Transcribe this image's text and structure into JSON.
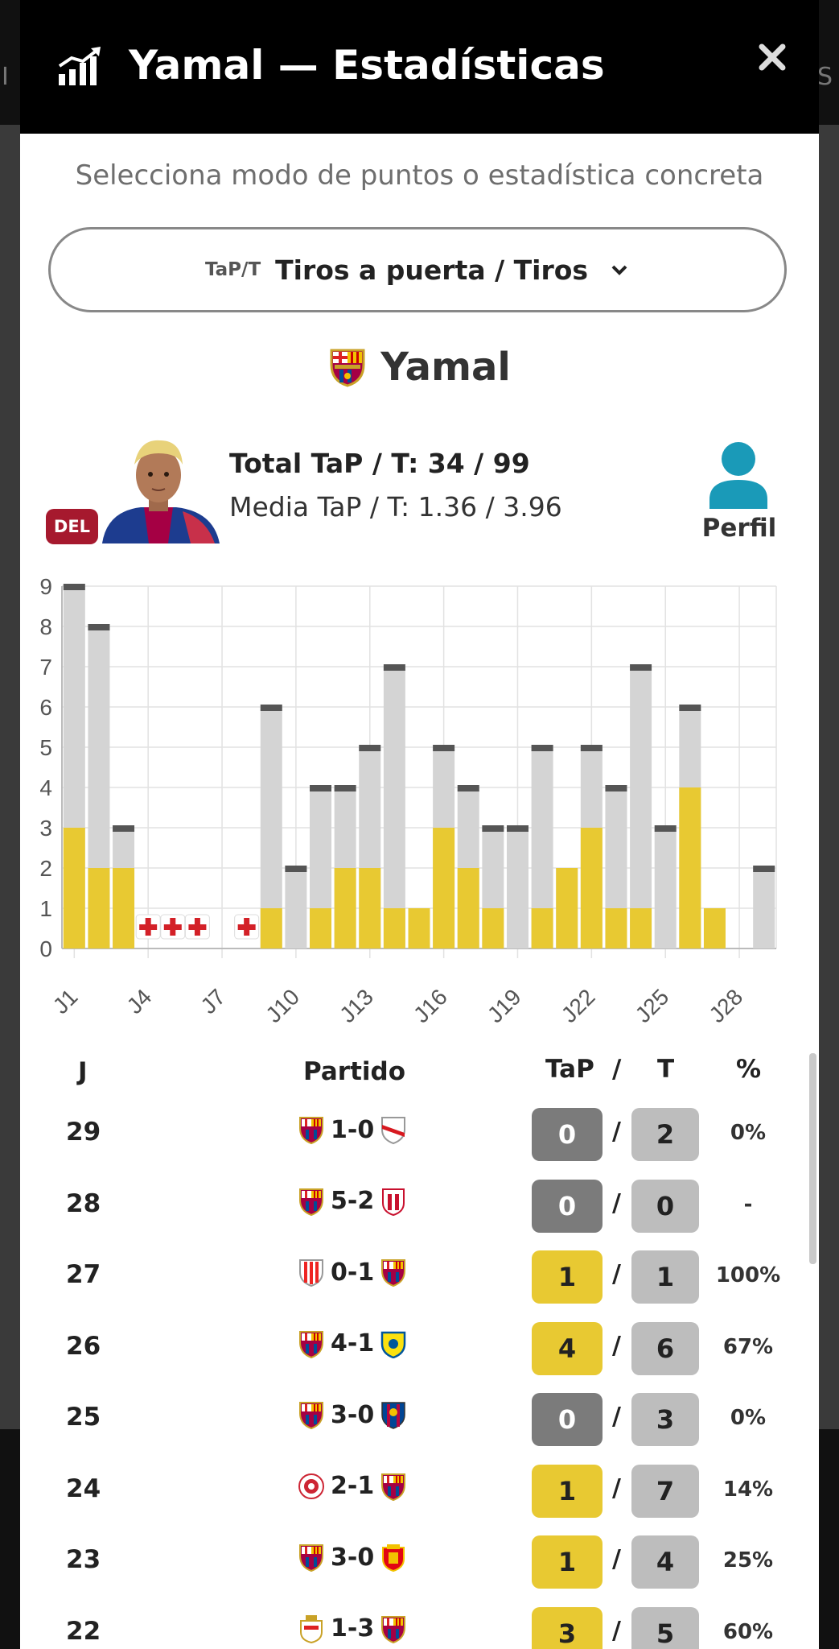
{
  "modal": {
    "title": "Yamal — Estadísticas",
    "subtitle": "Selecciona modo de puntos o estadística concreta",
    "selector": {
      "abbr": "TaP/T",
      "label": "Tiros a puerta / Tiros"
    }
  },
  "background": {
    "left_letter": "I",
    "right_letter": "S"
  },
  "player": {
    "name": "Yamal",
    "position": "DEL",
    "total": "Total TaP / T: 34 / 99",
    "average": "Media TaP / T: 1.36 / 3.96",
    "profile_label": "Perfil"
  },
  "colors": {
    "yellow": "#e8c932",
    "gray_bar": "#d4d4d4",
    "bar_cap": "#555555",
    "dark_pill": "#7b7b7b",
    "light_pill": "#bdbdbd",
    "badge": "#a6192e",
    "profile": "#1a9ab8"
  },
  "chart_data": {
    "type": "bar",
    "stacked": true,
    "categories": [
      "J1",
      "J2",
      "J3",
      "J4",
      "J5",
      "J6",
      "J7",
      "J8",
      "J9",
      "J10",
      "J11",
      "J12",
      "J13",
      "J14",
      "J15",
      "J16",
      "J17",
      "J18",
      "J19",
      "J20",
      "J21",
      "J22",
      "J23",
      "J24",
      "J25",
      "J26",
      "J27",
      "J28",
      "J29"
    ],
    "tick_labels": [
      "J1",
      "J4",
      "J7",
      "J10",
      "J13",
      "J16",
      "J19",
      "J22",
      "J25",
      "J28"
    ],
    "tap": [
      3,
      2,
      2,
      null,
      null,
      null,
      null,
      null,
      1,
      0,
      1,
      2,
      2,
      1,
      1,
      3,
      2,
      1,
      0,
      1,
      2,
      3,
      1,
      1,
      0,
      4,
      1,
      0,
      0
    ],
    "shots": [
      9,
      8,
      3,
      null,
      null,
      null,
      null,
      null,
      6,
      2,
      4,
      4,
      5,
      7,
      1,
      5,
      4,
      3,
      3,
      5,
      2,
      5,
      4,
      7,
      3,
      6,
      1,
      0,
      2
    ],
    "injured": [
      "J4",
      "J5",
      "J6",
      "J8"
    ],
    "ylim": [
      0,
      9
    ],
    "yticks": [
      0,
      1,
      2,
      3,
      4,
      5,
      6,
      7,
      8,
      9
    ],
    "grid": true
  },
  "table": {
    "headers": {
      "round": "J",
      "match": "Partido",
      "tap": "TaP",
      "slash": "/",
      "t": "T",
      "pct": "%"
    },
    "rows": [
      {
        "round": "29",
        "home": "barcelona",
        "score": "1-0",
        "away": "rayo",
        "tap": "0",
        "t": "2",
        "pct": "0%"
      },
      {
        "round": "28",
        "home": "barcelona",
        "score": "5-2",
        "away": "sevilla",
        "tap": "0",
        "t": "0",
        "pct": "-"
      },
      {
        "round": "27",
        "home": "athletic",
        "score": "0-1",
        "away": "barcelona",
        "tap": "1",
        "t": "1",
        "pct": "100%"
      },
      {
        "round": "26",
        "home": "barcelona",
        "score": "4-1",
        "away": "villarreal",
        "tap": "4",
        "t": "6",
        "pct": "67%"
      },
      {
        "round": "25",
        "home": "barcelona",
        "score": "3-0",
        "away": "levante",
        "tap": "0",
        "t": "3",
        "pct": "0%"
      },
      {
        "round": "24",
        "home": "girona",
        "score": "2-1",
        "away": "barcelona",
        "tap": "1",
        "t": "7",
        "pct": "14%"
      },
      {
        "round": "23",
        "home": "barcelona",
        "score": "3-0",
        "away": "mallorca",
        "tap": "1",
        "t": "4",
        "pct": "25%"
      },
      {
        "round": "22",
        "home": "oviedo",
        "score": "1-3",
        "away": "barcelona",
        "tap": "3",
        "t": "5",
        "pct": "60%"
      }
    ]
  }
}
